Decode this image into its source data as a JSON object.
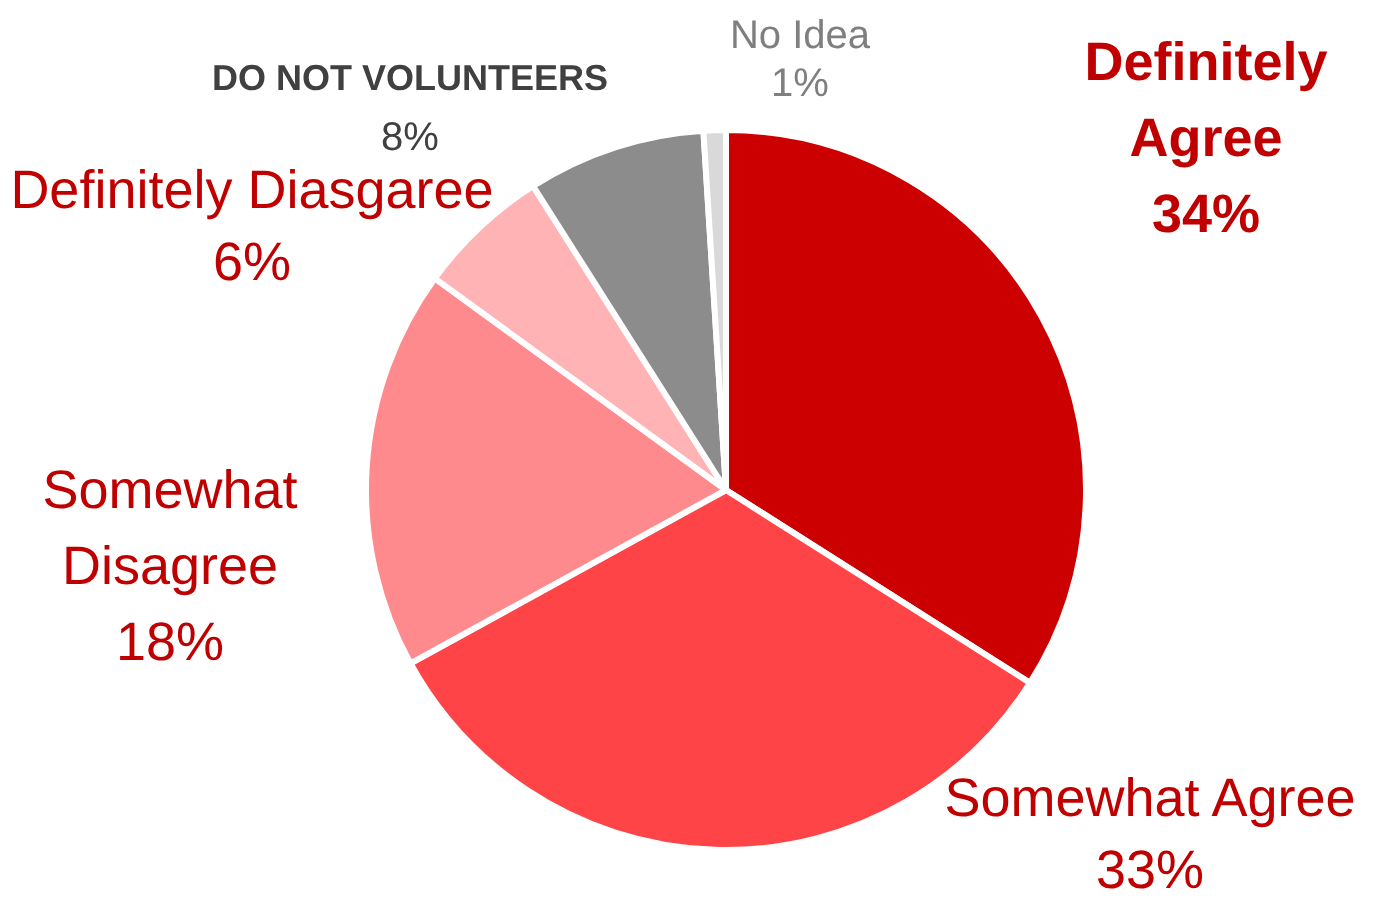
{
  "chart_data": {
    "type": "pie",
    "categories": [
      "Definitely Agree",
      "Somewhat Agree",
      "Somewhat Disagree",
      "Definitely Diasgaree",
      "DO NOT VOLUNTEERS",
      "No Idea"
    ],
    "values": [
      34,
      33,
      18,
      6,
      8,
      1
    ],
    "value_labels": [
      "34%",
      "33%",
      "18%",
      "6%",
      "8%",
      "1%"
    ],
    "colors": [
      "#cc0000",
      "#ff4448",
      "#ff8a8e",
      "#ffb3b5",
      "#8c8c8c",
      "#d9d9d9"
    ]
  }
}
